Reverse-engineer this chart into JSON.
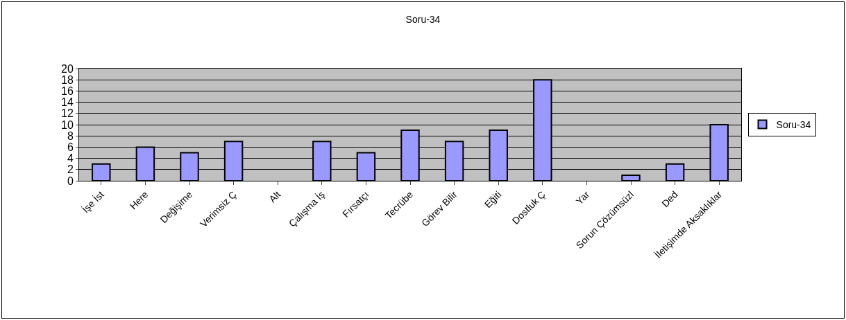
{
  "chart_data": {
    "type": "bar",
    "title": "Soru-34",
    "categories": [
      "İşe İst",
      "Here",
      "Değişime",
      "Verimsiz Ç",
      "Alt",
      "Çalışma İş",
      "Fırsatçı",
      "Tecrübe",
      "Görev Bilir",
      "Eğiti",
      "Dostluk Ç",
      "Yar",
      "Sorun Çözümsüzl",
      "Ded",
      "İletişimde Aksaklıklar"
    ],
    "series": [
      {
        "name": "Soru-34",
        "color": "#9999ff",
        "values": [
          3,
          6,
          5,
          7,
          null,
          7,
          5,
          9,
          7,
          9,
          18,
          null,
          1,
          3,
          10
        ]
      }
    ],
    "ylim": [
      0,
      20
    ],
    "yticks": [
      0,
      2,
      4,
      6,
      8,
      10,
      12,
      14,
      16,
      18,
      20
    ],
    "grid": "y",
    "legend": "right"
  }
}
